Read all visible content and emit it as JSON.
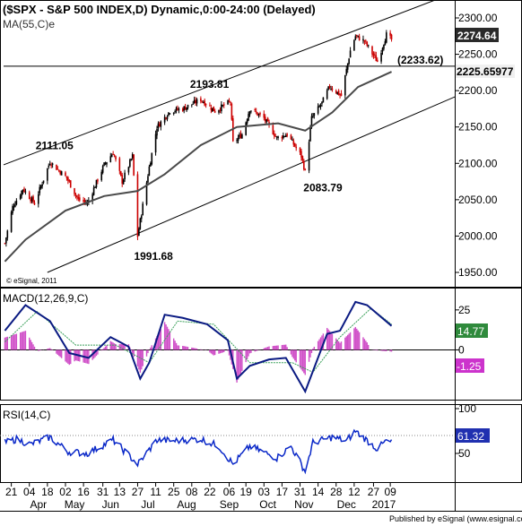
{
  "chart_data": [
    {
      "type": "candlestick",
      "title": "($SPX - S&P 500 INDEX,D) Dynamic,0:00-24:00 (Delayed)",
      "indicator_label": "MA(55,C)e",
      "copyright": "© eSignal, 2011",
      "ylim": [
        1950,
        2300
      ],
      "y_ticks": [
        "2300.00",
        "2250.00",
        "2200.00",
        "2150.00",
        "2100.00",
        "2050.00",
        "2000.00",
        "1950.00"
      ],
      "last_price": "2274.64",
      "ma_value": "2225.65977",
      "support_label": "(2233.62)",
      "annotations": [
        {
          "text": "2111.05",
          "value": 2111.05,
          "date": "2016-04-20"
        },
        {
          "text": "2193.81",
          "value": 2193.81,
          "date": "2016-08-15"
        },
        {
          "text": "1991.68",
          "value": 1991.68,
          "date": "2016-06-27"
        },
        {
          "text": "2083.79",
          "value": 2083.79,
          "date": "2016-11-04"
        }
      ],
      "trendlines": [
        {
          "name": "upper-channel",
          "points": [
            [
              "2016-03-15",
              2098
            ],
            [
              "2017-01-12",
              2303
            ]
          ]
        },
        {
          "name": "lower-channel",
          "points": [
            [
              "2016-04-18",
              1950
            ],
            [
              "2017-01-12",
              2159
            ]
          ]
        },
        {
          "name": "horizontal-support",
          "points": [
            [
              "2016-03-15",
              2233.62
            ],
            [
              "2017-01-12",
              2233.62
            ]
          ]
        }
      ],
      "price_keypoints": [
        [
          "2016-03-16",
          1990
        ],
        [
          "2016-03-22",
          2040
        ],
        [
          "2016-03-30",
          2065
        ],
        [
          "2016-04-08",
          2045
        ],
        [
          "2016-04-20",
          2102
        ],
        [
          "2016-05-03",
          2080
        ],
        [
          "2016-05-12",
          2050
        ],
        [
          "2016-05-19",
          2045
        ],
        [
          "2016-06-01",
          2098
        ],
        [
          "2016-06-08",
          2115
        ],
        [
          "2016-06-15",
          2075
        ],
        [
          "2016-06-23",
          2110
        ],
        [
          "2016-06-27",
          2000
        ],
        [
          "2016-07-06",
          2095
        ],
        [
          "2016-07-12",
          2150
        ],
        [
          "2016-07-22",
          2172
        ],
        [
          "2016-08-01",
          2175
        ],
        [
          "2016-08-15",
          2188
        ],
        [
          "2016-08-26",
          2172
        ],
        [
          "2016-09-07",
          2185
        ],
        [
          "2016-09-09",
          2128
        ],
        [
          "2016-09-16",
          2140
        ],
        [
          "2016-09-22",
          2175
        ],
        [
          "2016-10-03",
          2162
        ],
        [
          "2016-10-13",
          2135
        ],
        [
          "2016-10-21",
          2140
        ],
        [
          "2016-11-01",
          2110
        ],
        [
          "2016-11-04",
          2088
        ],
        [
          "2016-11-09",
          2162
        ],
        [
          "2016-11-17",
          2183
        ],
        [
          "2016-11-23",
          2206
        ],
        [
          "2016-12-02",
          2193
        ],
        [
          "2016-12-09",
          2255
        ],
        [
          "2016-12-13",
          2275
        ],
        [
          "2016-12-20",
          2268
        ],
        [
          "2016-12-30",
          2240
        ],
        [
          "2017-01-06",
          2277
        ],
        [
          "2017-01-10",
          2270
        ]
      ],
      "ma_keypoints": [
        [
          "2016-03-16",
          1965
        ],
        [
          "2016-04-01",
          1995
        ],
        [
          "2016-05-02",
          2035
        ],
        [
          "2016-06-01",
          2055
        ],
        [
          "2016-06-27",
          2062
        ],
        [
          "2016-07-18",
          2085
        ],
        [
          "2016-08-15",
          2125
        ],
        [
          "2016-09-12",
          2150
        ],
        [
          "2016-10-14",
          2155
        ],
        [
          "2016-11-04",
          2145
        ],
        [
          "2016-11-25",
          2170
        ],
        [
          "2016-12-15",
          2205
        ],
        [
          "2017-01-10",
          2226
        ]
      ],
      "x_ticks": [
        "21",
        "04",
        "18",
        "02",
        "16",
        "31",
        "13",
        "27",
        "11",
        "25",
        "08",
        "22",
        "06",
        "19",
        "03",
        "17",
        "31",
        "14",
        "28",
        "12",
        "27",
        "09"
      ],
      "x_months": [
        "Apr",
        "May",
        "Jun",
        "Jul",
        "Aug",
        "Sep",
        "Oct",
        "Nov",
        "Dec",
        "2017"
      ]
    },
    {
      "type": "line",
      "title": "MACD(12,26,9,C)",
      "ylim": [
        -30,
        35
      ],
      "y_ticks": [
        "25",
        "0"
      ],
      "last_macd": "14.77",
      "last_hist": "-1.25",
      "macd_keypoints": [
        [
          "2016-03-16",
          12
        ],
        [
          "2016-04-01",
          28
        ],
        [
          "2016-04-20",
          18
        ],
        [
          "2016-05-05",
          -2
        ],
        [
          "2016-05-20",
          -5
        ],
        [
          "2016-06-06",
          8
        ],
        [
          "2016-06-20",
          2
        ],
        [
          "2016-06-29",
          -18
        ],
        [
          "2016-07-06",
          -8
        ],
        [
          "2016-07-18",
          22
        ],
        [
          "2016-08-01",
          20
        ],
        [
          "2016-08-20",
          16
        ],
        [
          "2016-09-05",
          6
        ],
        [
          "2016-09-12",
          -18
        ],
        [
          "2016-09-22",
          -10
        ],
        [
          "2016-10-07",
          -6
        ],
        [
          "2016-10-20",
          -5
        ],
        [
          "2016-11-04",
          -26
        ],
        [
          "2016-11-21",
          10
        ],
        [
          "2016-12-01",
          12
        ],
        [
          "2016-12-13",
          30
        ],
        [
          "2016-12-22",
          28
        ],
        [
          "2017-01-10",
          15
        ]
      ],
      "signal_keypoints": [
        [
          "2016-03-16",
          5
        ],
        [
          "2016-04-10",
          24
        ],
        [
          "2016-05-10",
          3
        ],
        [
          "2016-06-10",
          3
        ],
        [
          "2016-07-06",
          -8
        ],
        [
          "2016-07-28",
          18
        ],
        [
          "2016-08-25",
          16
        ],
        [
          "2016-09-22",
          -8
        ],
        [
          "2016-10-25",
          -8
        ],
        [
          "2016-11-10",
          -14
        ],
        [
          "2016-12-01",
          8
        ],
        [
          "2016-12-25",
          26
        ],
        [
          "2017-01-10",
          16
        ]
      ]
    },
    {
      "type": "line",
      "title": "RSI(14,C)",
      "ylim": [
        20,
        100
      ],
      "y_ticks": [
        "100",
        "50"
      ],
      "last_rsi": "61.32",
      "reference_lines": [
        70
      ],
      "rsi_keypoints": [
        [
          "2016-03-16",
          62
        ],
        [
          "2016-03-25",
          66
        ],
        [
          "2016-04-05",
          60
        ],
        [
          "2016-04-20",
          68
        ],
        [
          "2016-05-04",
          52
        ],
        [
          "2016-05-19",
          50
        ],
        [
          "2016-06-08",
          65
        ],
        [
          "2016-06-27",
          38
        ],
        [
          "2016-07-12",
          65
        ],
        [
          "2016-07-25",
          64
        ],
        [
          "2016-08-15",
          66
        ],
        [
          "2016-08-29",
          58
        ],
        [
          "2016-09-09",
          38
        ],
        [
          "2016-09-22",
          58
        ],
        [
          "2016-10-13",
          45
        ],
        [
          "2016-10-24",
          58
        ],
        [
          "2016-11-04",
          30
        ],
        [
          "2016-11-10",
          62
        ],
        [
          "2016-11-25",
          68
        ],
        [
          "2016-12-06",
          64
        ],
        [
          "2016-12-13",
          75
        ],
        [
          "2016-12-30",
          55
        ],
        [
          "2017-01-06",
          64
        ],
        [
          "2017-01-10",
          62
        ]
      ]
    }
  ],
  "footer": {
    "published_by": "Published by eSignal (www.esignal.com)"
  },
  "colors": {
    "up": "#000000",
    "down": "#cc0000",
    "macd_line": "#0a1a82",
    "signal_line": "#3aa05a",
    "histogram": "#d050c8",
    "rsi_line": "#0a28c8",
    "ma_line": "#4a4a4a",
    "last_price_box": "#2a2a2a",
    "macd_box": "#2f8a3c",
    "hist_box": "#cc33cc",
    "rsi_box": "#2030b0"
  }
}
